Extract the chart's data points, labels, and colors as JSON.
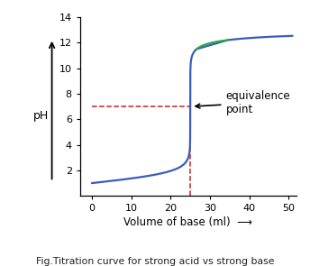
{
  "title": "Fig.Titration curve for strong acid vs strong base",
  "xlabel": "Volume of base (ml)",
  "ylabel": "pH",
  "xlim": [
    -3,
    52
  ],
  "ylim": [
    0,
    14
  ],
  "yticks": [
    2,
    4,
    6,
    8,
    10,
    12,
    14
  ],
  "xticks": [
    0,
    10,
    20,
    30,
    40,
    50
  ],
  "equivalence_x": 25,
  "equivalence_y": 7,
  "curve_color": "#3a5bbf",
  "green_segment_color": "#22aa44",
  "dashed_color": "#cc2222",
  "annotation_text": "equivalence\npoint",
  "bg_color": "#ffffff",
  "green_ph_low": 11.5,
  "green_ph_high": 12.2
}
